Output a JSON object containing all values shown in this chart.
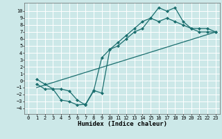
{
  "xlabel": "Humidex (Indice chaleur)",
  "background_color": "#cce8e8",
  "grid_color": "#ffffff",
  "line_color": "#1a6e6e",
  "xlim": [
    -0.5,
    23.5
  ],
  "ylim": [
    -4.8,
    11.2
  ],
  "xticks": [
    0,
    1,
    2,
    3,
    4,
    5,
    6,
    7,
    8,
    9,
    10,
    11,
    12,
    13,
    14,
    15,
    16,
    17,
    18,
    19,
    20,
    21,
    22,
    23
  ],
  "yticks": [
    -4,
    -3,
    -2,
    -1,
    0,
    1,
    2,
    3,
    4,
    5,
    6,
    7,
    8,
    9,
    10
  ],
  "line1_x": [
    1,
    2,
    3,
    4,
    5,
    6,
    7,
    8,
    9,
    10,
    11,
    12,
    13,
    14,
    15,
    16,
    17,
    18,
    19,
    20,
    21,
    22,
    23
  ],
  "line1_y": [
    0.2,
    -0.5,
    -1.2,
    -2.8,
    -3.0,
    -3.5,
    -3.4,
    -1.4,
    -1.8,
    4.5,
    5.5,
    6.5,
    7.5,
    8.5,
    9.0,
    10.5,
    10.0,
    10.5,
    8.5,
    7.5,
    7.5,
    7.5,
    7.0
  ],
  "line2_x": [
    1,
    2,
    3,
    4,
    5,
    6,
    7,
    8,
    9,
    10,
    11,
    12,
    13,
    14,
    15,
    16,
    17,
    18,
    19,
    20,
    21,
    22,
    23
  ],
  "line2_y": [
    -0.5,
    -1.2,
    -1.2,
    -1.2,
    -1.5,
    -2.8,
    -3.5,
    -1.5,
    3.3,
    4.5,
    5.0,
    6.0,
    7.0,
    7.5,
    9.0,
    8.5,
    9.0,
    8.5,
    8.0,
    7.5,
    7.0,
    7.0,
    7.0
  ],
  "line3_x": [
    1,
    23
  ],
  "line3_y": [
    -1.0,
    7.0
  ],
  "marker_size": 2.5,
  "linewidth": 0.9,
  "tick_fontsize": 5,
  "label_fontsize": 6.5
}
